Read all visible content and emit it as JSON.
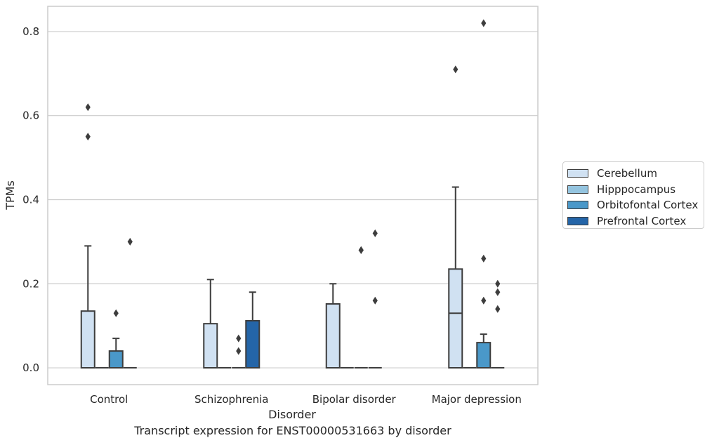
{
  "chart_data": {
    "type": "box",
    "xlabel": "Disorder",
    "ylabel": "TPMs",
    "caption": "Transcript expression for ENST00000531663 by disorder",
    "ylim": [
      -0.04,
      0.86
    ],
    "yticks": [
      0.0,
      0.2,
      0.4,
      0.6,
      0.8
    ],
    "ytick_labels": [
      "0.0",
      "0.2",
      "0.4",
      "0.6",
      "0.8"
    ],
    "grid": "horizontal",
    "legend_placement": "right-outside",
    "categories": [
      "Control",
      "Schizophrenia",
      "Bipolar disorder",
      "Major depression"
    ],
    "series": [
      {
        "name": "Cerebellum",
        "color": "#d0e1f2",
        "boxes": [
          {
            "q1": 0.0,
            "median": 0.0,
            "q3": 0.135,
            "whisker_low": 0.0,
            "whisker_high": 0.29,
            "outliers": [
              0.62,
              0.55
            ]
          },
          {
            "q1": 0.0,
            "median": 0.0,
            "q3": 0.105,
            "whisker_low": 0.0,
            "whisker_high": 0.21,
            "outliers": []
          },
          {
            "q1": 0.0,
            "median": 0.0,
            "q3": 0.152,
            "whisker_low": 0.0,
            "whisker_high": 0.2,
            "outliers": []
          },
          {
            "q1": 0.0,
            "median": 0.13,
            "q3": 0.235,
            "whisker_low": 0.0,
            "whisker_high": 0.43,
            "outliers": [
              0.71
            ]
          }
        ]
      },
      {
        "name": "Hipppocampus",
        "color": "#94c4df",
        "boxes": [
          {
            "q1": 0.0,
            "median": 0.0,
            "q3": 0.0,
            "whisker_low": 0.0,
            "whisker_high": 0.0,
            "outliers": []
          },
          {
            "q1": 0.0,
            "median": 0.0,
            "q3": 0.0,
            "whisker_low": 0.0,
            "whisker_high": 0.0,
            "outliers": []
          },
          {
            "q1": 0.0,
            "median": 0.0,
            "q3": 0.0,
            "whisker_low": 0.0,
            "whisker_high": 0.0,
            "outliers": []
          },
          {
            "q1": 0.0,
            "median": 0.0,
            "q3": 0.0,
            "whisker_low": 0.0,
            "whisker_high": 0.0,
            "outliers": []
          }
        ]
      },
      {
        "name": "Orbitofontal Cortex",
        "color": "#4a98c9",
        "boxes": [
          {
            "q1": 0.0,
            "median": 0.0,
            "q3": 0.04,
            "whisker_low": 0.0,
            "whisker_high": 0.07,
            "outliers": [
              0.13
            ]
          },
          {
            "q1": 0.0,
            "median": 0.0,
            "q3": 0.0,
            "whisker_low": 0.0,
            "whisker_high": 0.0,
            "outliers": [
              0.07,
              0.04
            ]
          },
          {
            "q1": 0.0,
            "median": 0.0,
            "q3": 0.0,
            "whisker_low": 0.0,
            "whisker_high": 0.0,
            "outliers": [
              0.28,
              0.28
            ]
          },
          {
            "q1": 0.0,
            "median": 0.0,
            "q3": 0.06,
            "whisker_low": 0.0,
            "whisker_high": 0.08,
            "outliers": [
              0.82,
              0.26,
              0.16
            ]
          }
        ]
      },
      {
        "name": "Prefrontal Cortex",
        "color": "#2465a8",
        "boxes": [
          {
            "q1": 0.0,
            "median": 0.0,
            "q3": 0.0,
            "whisker_low": 0.0,
            "whisker_high": 0.0,
            "outliers": [
              0.3
            ]
          },
          {
            "q1": 0.0,
            "median": 0.0,
            "q3": 0.112,
            "whisker_low": 0.0,
            "whisker_high": 0.18,
            "outliers": []
          },
          {
            "q1": 0.0,
            "median": 0.0,
            "q3": 0.0,
            "whisker_low": 0.0,
            "whisker_high": 0.0,
            "outliers": [
              0.32,
              0.16
            ]
          },
          {
            "q1": 0.0,
            "median": 0.0,
            "q3": 0.0,
            "whisker_low": 0.0,
            "whisker_high": 0.0,
            "outliers": [
              0.2,
              0.18,
              0.14
            ]
          }
        ]
      }
    ]
  }
}
